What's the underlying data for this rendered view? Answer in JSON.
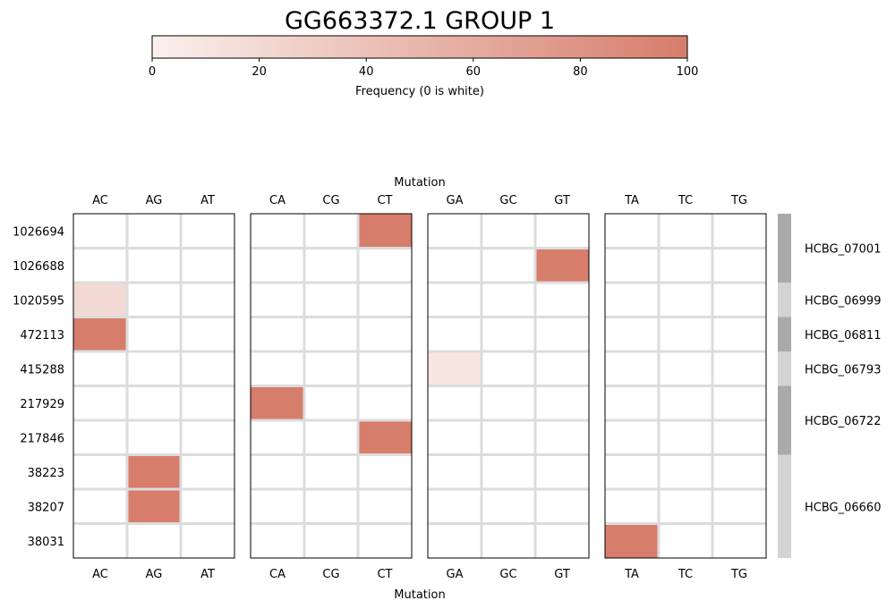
{
  "chart_data": {
    "type": "heatmap",
    "title": "GG663372.1 GROUP 1",
    "colorbar": {
      "label": "Frequency (0 is white)",
      "ticks": [
        0,
        20,
        40,
        60,
        80,
        100
      ],
      "range": [
        0,
        100
      ],
      "color_low": "#ffffff",
      "color_high": "#d67d6b"
    },
    "xlabel": "Mutation",
    "panels": [
      {
        "columns": [
          "AC",
          "AG",
          "AT"
        ]
      },
      {
        "columns": [
          "CA",
          "CG",
          "CT"
        ]
      },
      {
        "columns": [
          "GA",
          "GC",
          "GT"
        ]
      },
      {
        "columns": [
          "TA",
          "TC",
          "TG"
        ]
      }
    ],
    "rows": [
      "1026694",
      "1026688",
      "1020595",
      "472113",
      "415288",
      "217929",
      "217846",
      "38223",
      "38207",
      "38031"
    ],
    "cells": [
      {
        "row": "1026694",
        "col": "CT",
        "value": 100
      },
      {
        "row": "1026688",
        "col": "GT",
        "value": 100
      },
      {
        "row": "1020595",
        "col": "AC",
        "value": 20
      },
      {
        "row": "472113",
        "col": "AC",
        "value": 100
      },
      {
        "row": "415288",
        "col": "GA",
        "value": 10
      },
      {
        "row": "217929",
        "col": "CA",
        "value": 100
      },
      {
        "row": "217846",
        "col": "CT",
        "value": 100
      },
      {
        "row": "38223",
        "col": "AG",
        "value": 100
      },
      {
        "row": "38207",
        "col": "AG",
        "value": 100
      },
      {
        "row": "38031",
        "col": "TA",
        "value": 100
      }
    ],
    "groups": [
      {
        "name": "HCBG_07001",
        "rows": 2,
        "color": "#aaaaaa"
      },
      {
        "name": "HCBG_06999",
        "rows": 1,
        "color": "#d3d3d3"
      },
      {
        "name": "HCBG_06811",
        "rows": 1,
        "color": "#aaaaaa"
      },
      {
        "name": "HCBG_06793",
        "rows": 1,
        "color": "#d3d3d3"
      },
      {
        "name": "HCBG_06722",
        "rows": 2,
        "color": "#aaaaaa"
      },
      {
        "name": "HCBG_06660",
        "rows": 3,
        "color": "#d3d3d3"
      }
    ]
  }
}
